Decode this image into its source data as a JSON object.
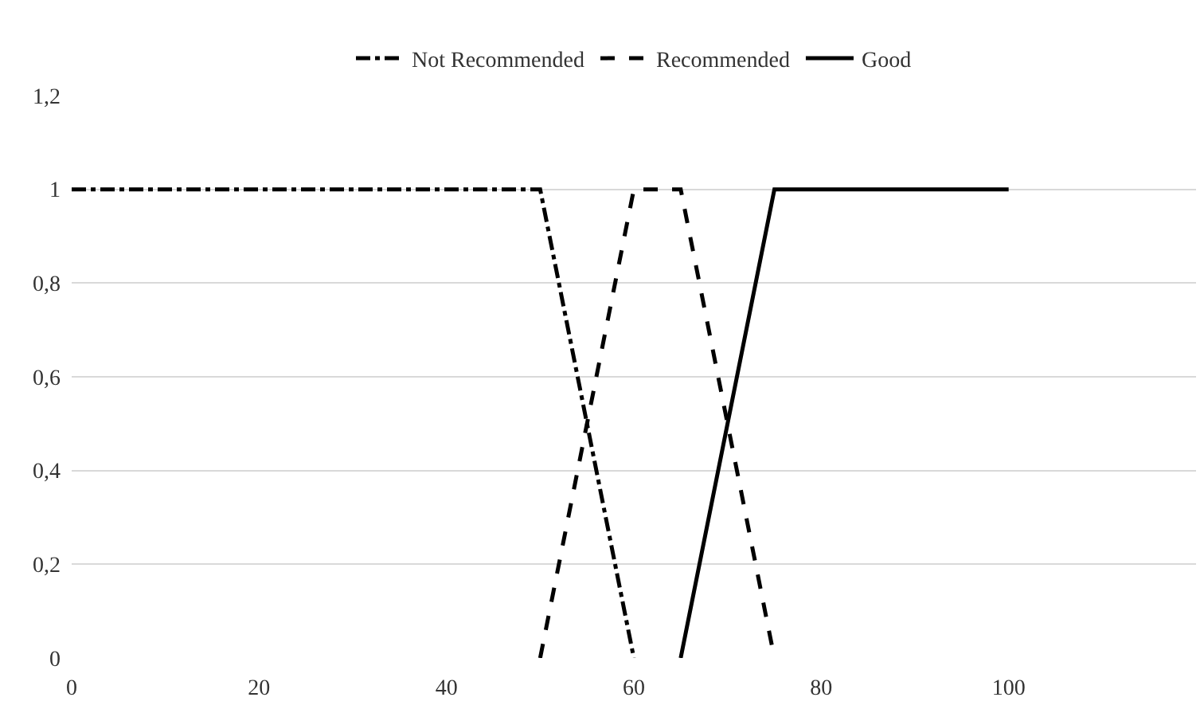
{
  "chart_data": {
    "type": "line",
    "xlim": [
      0,
      120
    ],
    "xticks": [
      0,
      20,
      40,
      60,
      80,
      100
    ],
    "ylim": [
      0,
      1.2
    ],
    "yticks": [
      0,
      {
        "value": 0.2,
        "label": "0,2"
      },
      {
        "value": 0.4,
        "label": "0,4"
      },
      {
        "value": 0.6,
        "label": "0,6"
      },
      {
        "value": 0.8,
        "label": "0,8"
      },
      1,
      {
        "value": 1.2,
        "label": "1,2"
      }
    ],
    "grid": "y",
    "legend": "top",
    "marker": "none",
    "series": [
      {
        "name": "Not Recommended",
        "color": "#000000",
        "line_style": "dashdot",
        "x": [
          0,
          50,
          60
        ],
        "values": [
          1,
          1,
          0
        ]
      },
      {
        "name": "Recommended",
        "color": "#000000",
        "line_style": "dashed",
        "x": [
          50,
          60,
          65,
          75
        ],
        "values": [
          0,
          1,
          1,
          0
        ]
      },
      {
        "name": "Good",
        "color": "#000000",
        "line_style": "solid",
        "x": [
          65,
          75,
          100
        ],
        "values": [
          0,
          1,
          1
        ]
      }
    ]
  }
}
